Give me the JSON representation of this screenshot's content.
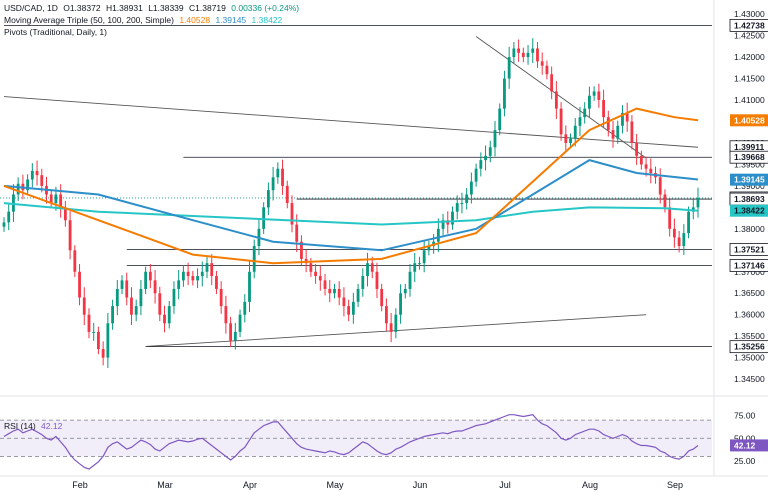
{
  "header": {
    "symbol": "USD/CAD, 1D",
    "open": "O1.38372",
    "high": "H1.38931",
    "low": "L1.38339",
    "close": "C1.38719",
    "change": "0.00336 (+0.24%)",
    "ma_label": "Moving Average Triple (50, 100, 200, Simple)",
    "ma_values": [
      "1.40528",
      "1.39145",
      "1.38422"
    ],
    "pivots_label": "Pivots (Traditional, Daily, 1)",
    "rsi_label": "RSI (14)",
    "rsi_value": "42.12"
  },
  "colors": {
    "up": "#089981",
    "down": "#f23645",
    "ma50": "#f57c00",
    "ma100": "#2d8fc9",
    "ma200": "#26c6c6",
    "rsi": "#7e57c2",
    "trend": "#555555"
  },
  "chart_data": [
    {
      "type": "line",
      "subtype": "candlestick",
      "x_ticks": [
        "Feb",
        "Mar",
        "Apr",
        "May",
        "Jun",
        "Jul",
        "Aug",
        "Sep"
      ],
      "y_ticks": [
        "1.43000",
        "1.42500",
        "1.42000",
        "1.41500",
        "1.41000",
        "1.40500",
        "1.40000",
        "1.39500",
        "1.39000",
        "1.38500",
        "1.38000",
        "1.37500",
        "1.37000",
        "1.36500",
        "1.36000",
        "1.35500",
        "1.35000",
        "1.34500"
      ],
      "ylim": [
        1.342,
        1.4305
      ],
      "price_labels": [
        {
          "value": 1.42738,
          "text": "1.42738",
          "style": "level"
        },
        {
          "value": 1.40528,
          "text": "1.40528",
          "style": "ma50"
        },
        {
          "value": 1.39911,
          "text": "1.39911",
          "style": "level"
        },
        {
          "value": 1.39668,
          "text": "1.39668",
          "style": "level"
        },
        {
          "value": 1.39145,
          "text": "1.39145",
          "style": "ma100"
        },
        {
          "value": 1.38719,
          "text": "1.38719",
          "style": "level"
        },
        {
          "value": 1.38693,
          "text": "1.38693",
          "style": "level"
        },
        {
          "value": 1.38422,
          "text": "1.38422",
          "style": "ma200"
        },
        {
          "value": 1.37521,
          "text": "1.37521",
          "style": "level"
        },
        {
          "value": 1.37146,
          "text": "1.37146",
          "style": "level"
        },
        {
          "value": 1.35256,
          "text": "1.35256",
          "style": "level"
        }
      ],
      "candles_close": [
        1.3815,
        1.384,
        1.388,
        1.3905,
        1.389,
        1.3915,
        1.3935,
        1.3925,
        1.39,
        1.388,
        1.386,
        1.388,
        1.385,
        1.382,
        1.375,
        1.37,
        1.364,
        1.36,
        1.356,
        1.356,
        1.352,
        1.35,
        1.358,
        1.362,
        1.366,
        1.368,
        1.364,
        1.36,
        1.362,
        1.366,
        1.37,
        1.368,
        1.365,
        1.36,
        1.358,
        1.362,
        1.366,
        1.368,
        1.37,
        1.369,
        1.368,
        1.369,
        1.37,
        1.372,
        1.369,
        1.366,
        1.362,
        1.358,
        1.354,
        1.356,
        1.36,
        1.363,
        1.37,
        1.376,
        1.38,
        1.385,
        1.389,
        1.392,
        1.394,
        1.39,
        1.386,
        1.381,
        1.377,
        1.373,
        1.372,
        1.37,
        1.369,
        1.368,
        1.366,
        1.365,
        1.366,
        1.364,
        1.362,
        1.36,
        1.363,
        1.366,
        1.369,
        1.372,
        1.37,
        1.366,
        1.362,
        1.358,
        1.356,
        1.36,
        1.365,
        1.366,
        1.37,
        1.372,
        1.372,
        1.375,
        1.376,
        1.377,
        1.38,
        1.382,
        1.381,
        1.384,
        1.386,
        1.386,
        1.388,
        1.391,
        1.394,
        1.396,
        1.397,
        1.399,
        1.403,
        1.408,
        1.415,
        1.42,
        1.422,
        1.421,
        1.42,
        1.421,
        1.422,
        1.419,
        1.418,
        1.416,
        1.412,
        1.408,
        1.402,
        1.4,
        1.401,
        1.404,
        1.406,
        1.408,
        1.411,
        1.412,
        1.41,
        1.406,
        1.403,
        1.401,
        1.404,
        1.407,
        1.405,
        1.4,
        1.397,
        1.395,
        1.394,
        1.393,
        1.392,
        1.388,
        1.385,
        1.38,
        1.378,
        1.376,
        1.379,
        1.384,
        1.385,
        1.3872
      ],
      "ma50": [
        [
          0,
          1.39
        ],
        [
          20,
          1.382
        ],
        [
          40,
          1.374
        ],
        [
          57,
          1.372
        ],
        [
          80,
          1.373
        ],
        [
          100,
          1.379
        ],
        [
          112,
          1.391
        ],
        [
          124,
          1.403
        ],
        [
          134,
          1.408
        ],
        [
          142,
          1.406
        ],
        [
          147,
          1.4053
        ]
      ],
      "ma100": [
        [
          0,
          1.39
        ],
        [
          20,
          1.388
        ],
        [
          40,
          1.382
        ],
        [
          57,
          1.377
        ],
        [
          80,
          1.375
        ],
        [
          100,
          1.38
        ],
        [
          112,
          1.388
        ],
        [
          124,
          1.396
        ],
        [
          134,
          1.393
        ],
        [
          147,
          1.3915
        ]
      ],
      "ma200": [
        [
          0,
          1.386
        ],
        [
          20,
          1.384
        ],
        [
          40,
          1.383
        ],
        [
          60,
          1.382
        ],
        [
          80,
          1.381
        ],
        [
          100,
          1.382
        ],
        [
          112,
          1.384
        ],
        [
          124,
          1.385
        ],
        [
          140,
          1.3848
        ],
        [
          147,
          1.3842
        ]
      ],
      "pivot_levels": [
        {
          "value": 1.42738,
          "from": 0,
          "to": 147
        },
        {
          "value": 1.39668,
          "from": 38,
          "to": 147
        },
        {
          "value": 1.38693,
          "from": 62,
          "to": 147
        },
        {
          "value": 1.37521,
          "from": 26,
          "to": 147
        },
        {
          "value": 1.37146,
          "from": 26,
          "to": 147
        },
        {
          "value": 1.35256,
          "from": 30,
          "to": 147
        }
      ],
      "trendlines": [
        {
          "from": [
            0,
            1.4108
          ],
          "to": [
            147,
            1.399
          ]
        },
        {
          "from": [
            100,
            1.4248
          ],
          "to": [
            136,
            1.3965
          ]
        },
        {
          "from": [
            30,
            1.3526
          ],
          "to": [
            136,
            1.36
          ]
        }
      ]
    },
    {
      "type": "line",
      "title": "RSI (14)",
      "y_ticks": [
        "75.00",
        "50.00",
        "42.12",
        "25.00"
      ],
      "ylim": [
        15,
        90
      ],
      "overbought": 70,
      "oversold": 30,
      "values": [
        52,
        55,
        58,
        60,
        56,
        58,
        60,
        57,
        54,
        50,
        48,
        52,
        46,
        40,
        32,
        26,
        22,
        18,
        16,
        20,
        24,
        30,
        40,
        44,
        46,
        42,
        38,
        40,
        44,
        48,
        46,
        43,
        38,
        36,
        40,
        44,
        46,
        48,
        47,
        46,
        47,
        49,
        50,
        46,
        42,
        38,
        34,
        30,
        26,
        30,
        36,
        40,
        48,
        56,
        60,
        64,
        66,
        68,
        68,
        62,
        56,
        50,
        44,
        40,
        38,
        37,
        36,
        35,
        34,
        36,
        35,
        33,
        32,
        34,
        38,
        42,
        46,
        44,
        40,
        36,
        33,
        32,
        34,
        38,
        40,
        43,
        46,
        48,
        50,
        52,
        53,
        54,
        55,
        56,
        55,
        57,
        58,
        58,
        60,
        62,
        64,
        65,
        66,
        68,
        70,
        72,
        74,
        76,
        76,
        75,
        74,
        75,
        76,
        70,
        66,
        64,
        60,
        56,
        50,
        48,
        50,
        54,
        56,
        58,
        60,
        60,
        58,
        54,
        52,
        50,
        52,
        54,
        52,
        47,
        44,
        42,
        42,
        41,
        40,
        36,
        34,
        30,
        28,
        27,
        30,
        36,
        38,
        42
      ]
    }
  ]
}
